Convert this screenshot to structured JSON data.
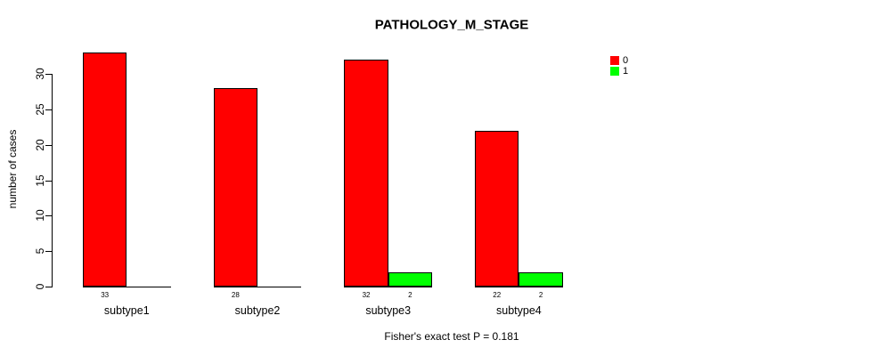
{
  "title": "PATHOLOGY_M_STAGE",
  "ylabel": "number of cases",
  "footer": "Fisher's exact test P = 0.181",
  "chart_data": {
    "type": "bar",
    "grouped": true,
    "title": "PATHOLOGY_M_STAGE",
    "xlabel": "",
    "ylabel": "number of cases",
    "categories": [
      "subtype1",
      "subtype2",
      "subtype3",
      "subtype4"
    ],
    "series": [
      {
        "name": "0",
        "color": "#ff0000",
        "values": [
          33,
          28,
          32,
          22
        ]
      },
      {
        "name": "1",
        "color": "#00ff00",
        "values": [
          0,
          0,
          2,
          2
        ]
      }
    ],
    "bar_value_labels": [
      [
        "33",
        "28",
        "32",
        "22"
      ],
      [
        "",
        "",
        "2",
        "2"
      ]
    ],
    "yticks": [
      0,
      5,
      10,
      15,
      20,
      25,
      30
    ],
    "ylim": [
      0,
      33
    ],
    "grid": false,
    "legend_position": "top-right",
    "legend_entries": [
      {
        "label": "0",
        "color": "#ff0000"
      },
      {
        "label": "1",
        "color": "#00ff00"
      }
    ],
    "annotation": "Fisher's exact test P = 0.181",
    "annotation_position": "bottom-center",
    "axis_color": "#000000",
    "bar_border_color": "#000000"
  }
}
